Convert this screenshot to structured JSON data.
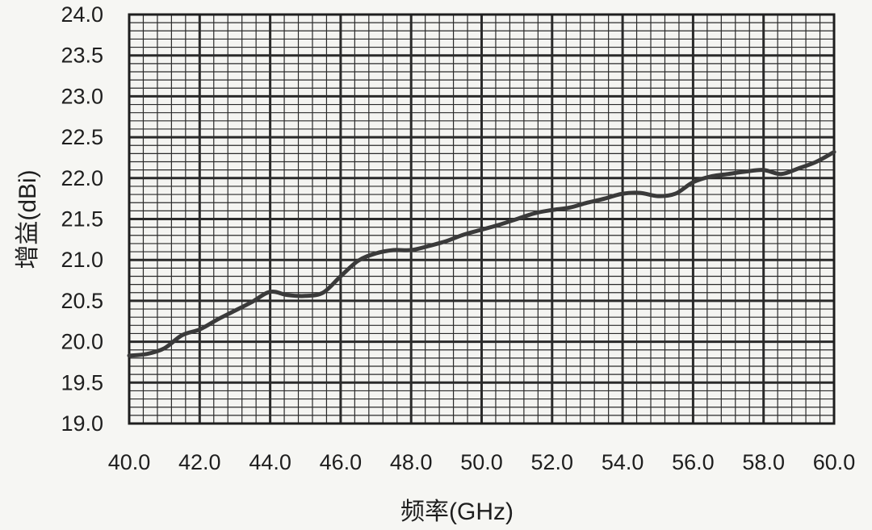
{
  "chart_data": {
    "type": "line",
    "title": "",
    "xlabel": "频率(GHz)",
    "ylabel": "增益(dBi)",
    "xlim": [
      40.0,
      60.0
    ],
    "ylim": [
      19.0,
      24.0
    ],
    "x_ticks": [
      "40.0",
      "42.0",
      "44.0",
      "46.0",
      "48.0",
      "50.0",
      "52.0",
      "54.0",
      "56.0",
      "58.0",
      "60.0"
    ],
    "y_ticks": [
      "24.0",
      "23.5",
      "23.0",
      "22.5",
      "22.0",
      "21.5",
      "21.0",
      "20.5",
      "20.0",
      "19.5",
      "19.0"
    ],
    "grid": true,
    "legend": "none",
    "colors": {
      "line": "#3a3a3a",
      "grid": "#2a2a2a",
      "background": "#f6f6f3"
    },
    "series": [
      {
        "x": [
          40.0,
          40.5,
          41.0,
          41.5,
          42.0,
          42.5,
          43.0,
          43.5,
          44.0,
          44.5,
          45.0,
          45.5,
          46.0,
          46.5,
          47.0,
          47.5,
          48.0,
          48.5,
          49.0,
          49.5,
          50.0,
          50.5,
          51.0,
          51.5,
          52.0,
          52.5,
          53.0,
          53.5,
          54.0,
          54.5,
          55.0,
          55.5,
          56.0,
          56.5,
          57.0,
          57.5,
          58.0,
          58.5,
          59.0,
          59.5,
          60.0
        ],
        "values": [
          19.83,
          19.85,
          19.92,
          20.08,
          20.15,
          20.27,
          20.38,
          20.49,
          20.61,
          20.57,
          20.56,
          20.6,
          20.8,
          20.99,
          21.08,
          21.12,
          21.12,
          21.17,
          21.23,
          21.31,
          21.37,
          21.43,
          21.5,
          21.57,
          21.61,
          21.64,
          21.7,
          21.75,
          21.81,
          21.82,
          21.78,
          21.81,
          21.95,
          22.02,
          22.05,
          22.08,
          22.1,
          22.05,
          22.12,
          22.2,
          22.32
        ]
      }
    ]
  }
}
